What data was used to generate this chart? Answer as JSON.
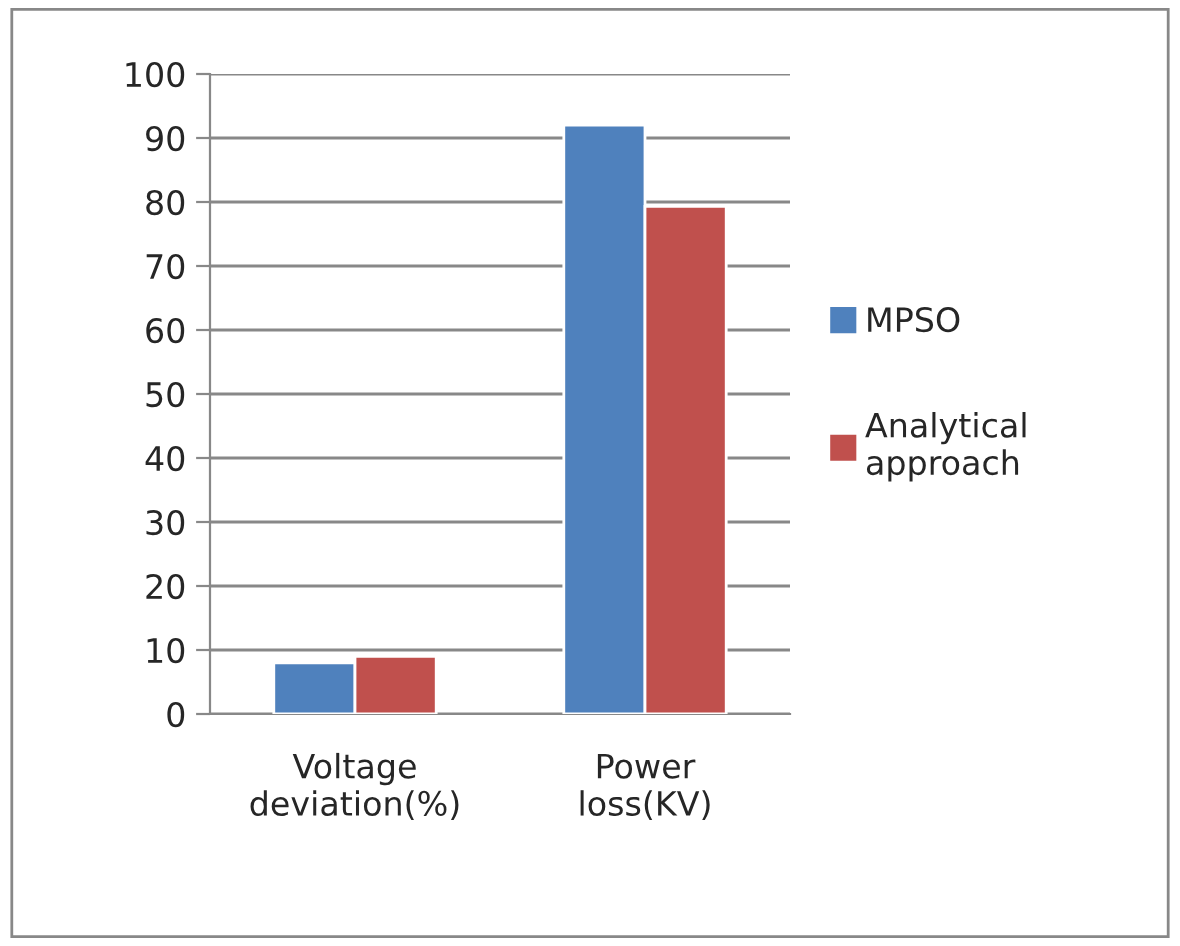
{
  "chart_data": {
    "type": "bar",
    "categories": [
      "Voltage deviation(%)",
      "Power loss(KV)"
    ],
    "series": [
      {
        "name": "MPSO",
        "color": "#4f81bd",
        "values": [
          8,
          92
        ]
      },
      {
        "name": "Analytical approach",
        "color": "#c0504d",
        "values": [
          9,
          79.3
        ]
      }
    ],
    "ylim": [
      0,
      100
    ],
    "yticks": [
      0,
      10,
      20,
      30,
      40,
      50,
      60,
      70,
      80,
      90,
      100
    ],
    "grid": "y",
    "legend": "right"
  }
}
